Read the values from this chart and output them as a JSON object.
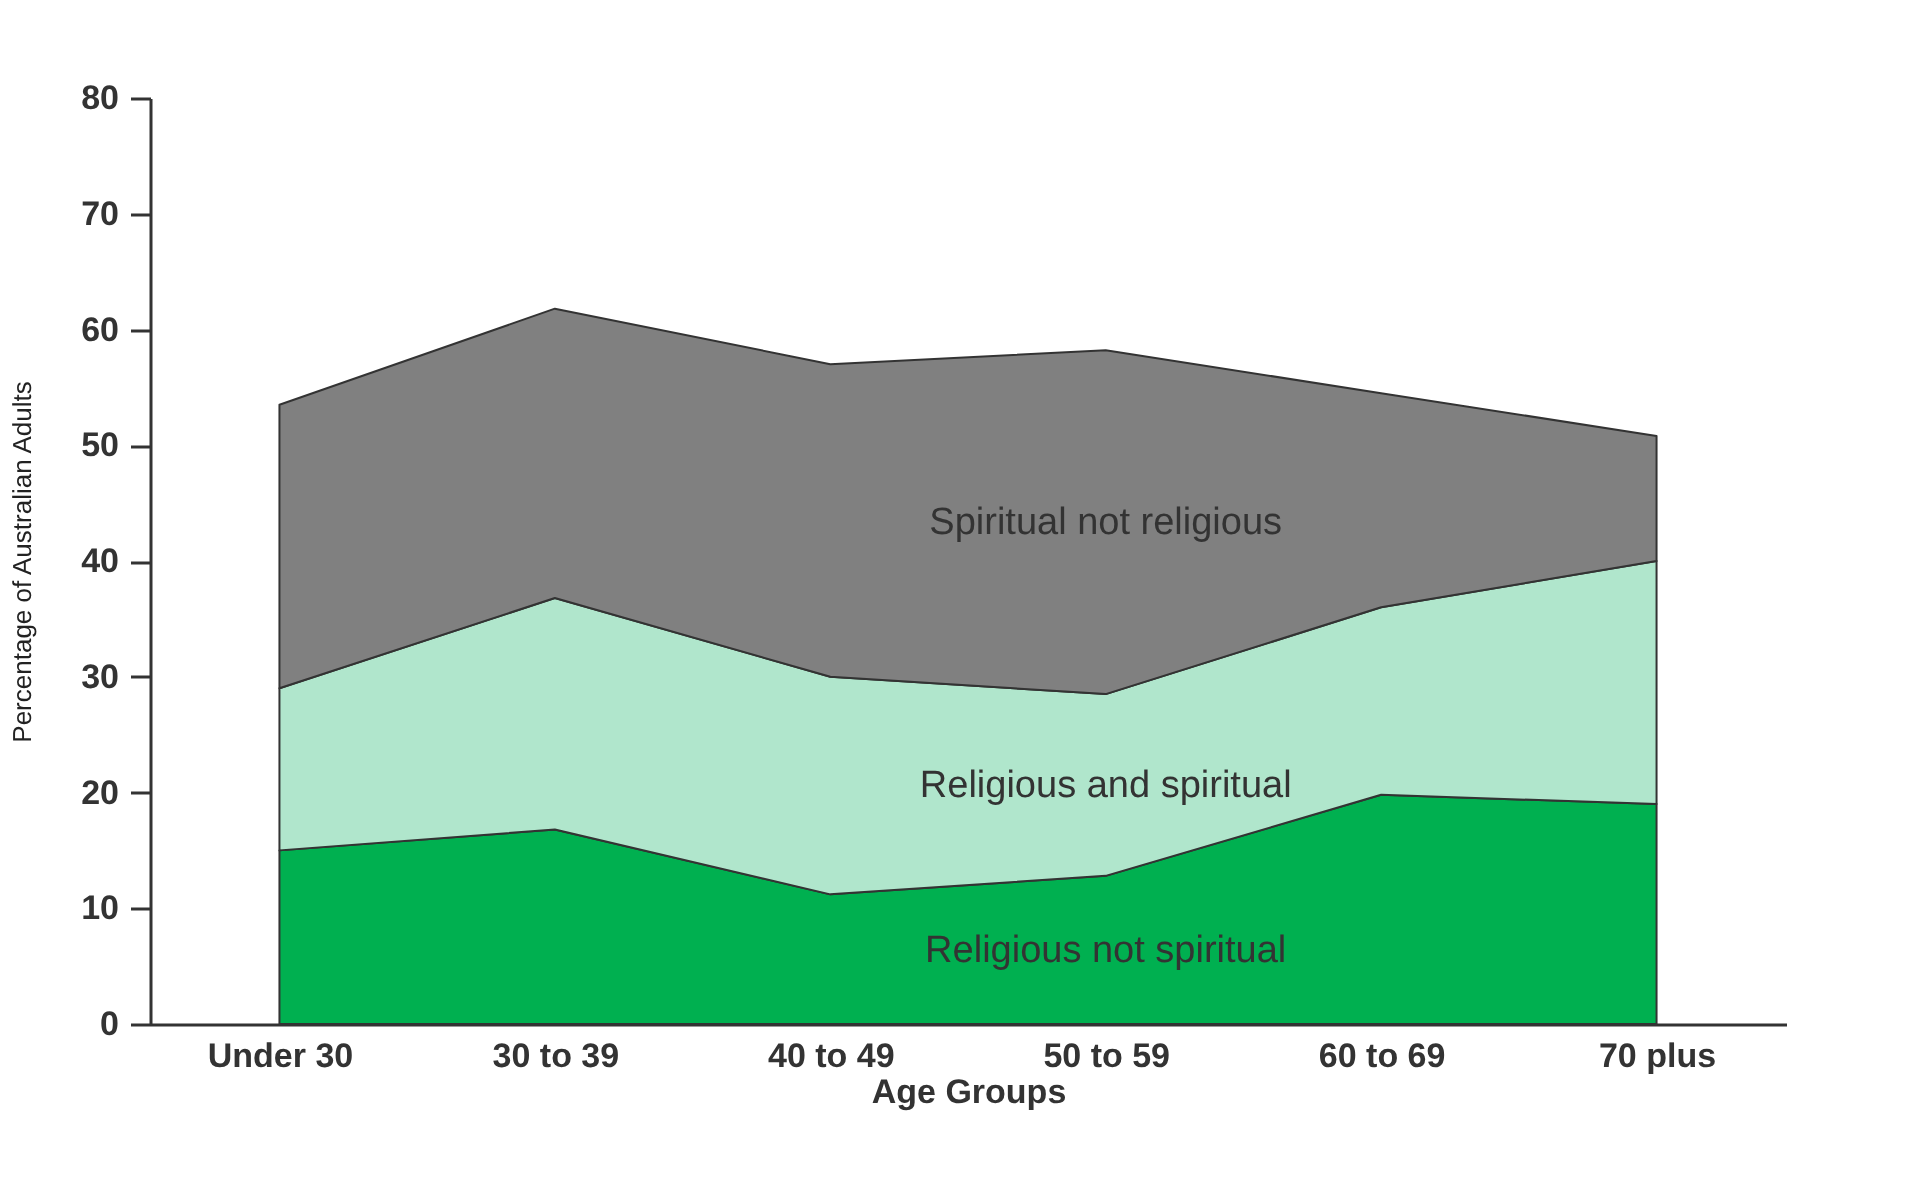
{
  "chart_data": {
    "type": "area",
    "stacked": true,
    "xlabel": "Age Groups",
    "ylabel": "Percentage of Australian Adults",
    "categories": [
      "Under 30",
      "30 to 39",
      "40 to 49",
      "50 to 59",
      "60 to 69",
      "70 plus"
    ],
    "series": [
      {
        "name": "Religious not spiritual",
        "color": "#00b050",
        "values": [
          15,
          16.8,
          11.2,
          12.8,
          19.8,
          19
        ]
      },
      {
        "name": "Religious and spiritual",
        "color": "#b0e6cc",
        "values": [
          14,
          20,
          18.8,
          15.7,
          16.2,
          21
        ]
      },
      {
        "name": "Spiritual not religious",
        "color": "#808080",
        "values": [
          24.5,
          25,
          27,
          29.7,
          18.5,
          10.8
        ]
      }
    ],
    "ylim": [
      0,
      80
    ],
    "yticks": [
      0,
      10,
      20,
      30,
      40,
      50,
      60,
      70,
      80
    ],
    "grid": false,
    "legend": false
  }
}
